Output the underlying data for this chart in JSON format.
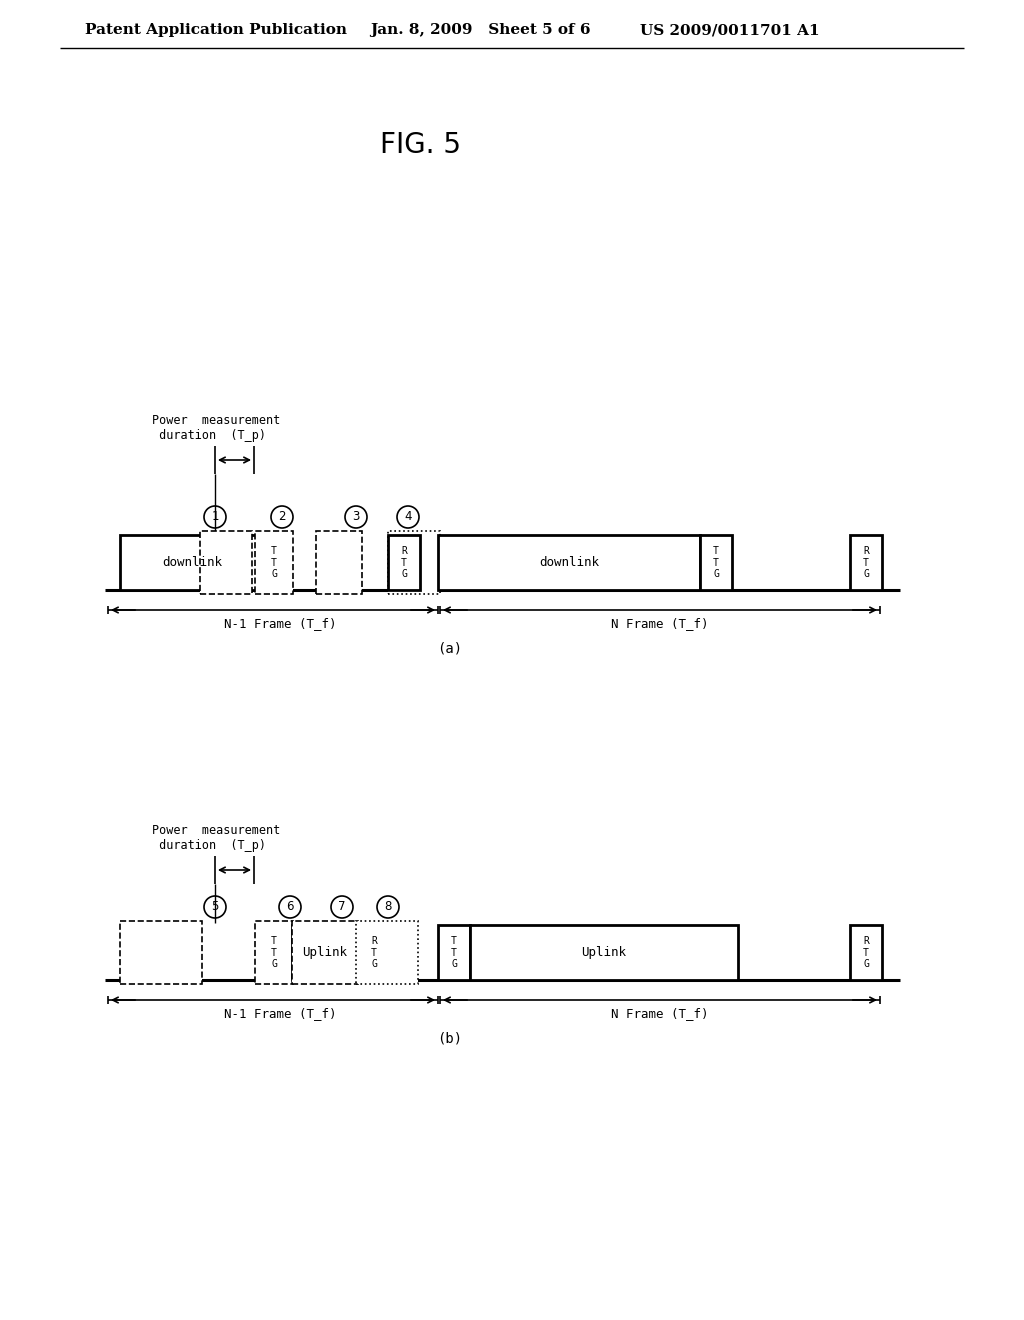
{
  "header_left": "Patent Application Publication",
  "header_mid": "Jan. 8, 2009   Sheet 5 of 6",
  "header_right": "US 2009/0011701 A1",
  "fig_title": "FIG. 5",
  "diagram_a_label": "(a)",
  "diagram_b_label": "(b)",
  "frame_n1_label": "N-1 Frame (T_f)",
  "frame_n_label": "N Frame (T_f)",
  "power_meas_line1": "Power  measurement",
  "power_meas_line2": " duration  (T_p)",
  "bg_color": "#ffffff"
}
